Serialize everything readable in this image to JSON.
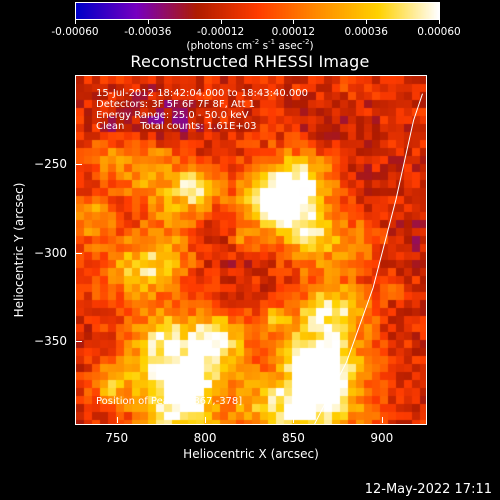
{
  "colorbar": {
    "tick_labels": [
      "-0.00060",
      "-0.00036",
      "-0.00012",
      "0.00012",
      "0.00036",
      "0.00060"
    ],
    "units_prefix": "(photons cm",
    "units_sup1": "-2",
    "units_mid": " s",
    "units_sup2": "-1",
    "units_end": " asec",
    "units_sup3": "-2",
    "units_close": ")",
    "colors": [
      "#0000c8",
      "#7700c0",
      "#b01c00",
      "#ff3c00",
      "#ff8c00",
      "#ffd200",
      "#ffffff"
    ]
  },
  "title": "Reconstructed RHESSI Image",
  "info": {
    "time_range": "15-Jul-2012 18:42:04.000 to 18:43:40.000",
    "detectors": "Detectors: 3F 5F 6F 7F 8F, Att 1",
    "energy_range": "Energy Range: 25.0 - 50.0 keV",
    "method": "Clean     Total counts: 1.61E+03",
    "peak": "Position of Peak = [867,-378]"
  },
  "chart_data": {
    "type": "heatmap",
    "title": "Reconstructed RHESSI Image",
    "xlabel": "Heliocentric X (arcsec)",
    "ylabel": "Heliocentric Y (arcsec)",
    "x_ticks": [
      "750",
      "800",
      "850",
      "900"
    ],
    "y_ticks": [
      "-250",
      "-300",
      "-350"
    ],
    "xlim": [
      727,
      925
    ],
    "ylim": [
      -397,
      -200
    ],
    "zlim": [
      -0.0006,
      0.0006
    ],
    "peak": [
      867,
      -378
    ],
    "total_counts": "1.61E+03",
    "limb_curve": [
      [
        862,
        -397
      ],
      [
        880,
        -362
      ],
      [
        895,
        -320
      ],
      [
        908,
        -270
      ],
      [
        918,
        -225
      ],
      [
        923,
        -210
      ]
    ]
  },
  "footer": {
    "timestamp": "12-May-2022 17:11"
  }
}
